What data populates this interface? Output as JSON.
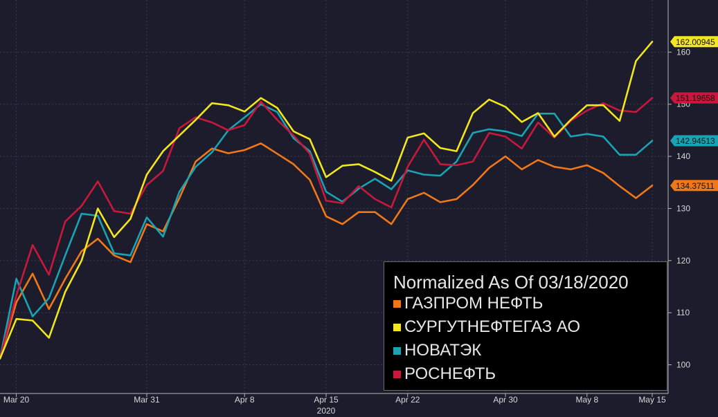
{
  "chart_data": {
    "type": "line",
    "x_labels": [
      "Mar 20",
      "Mar 31",
      "Apr 8",
      "Apr 15",
      "Apr 22",
      "Apr 30",
      "May 8",
      "May 15"
    ],
    "x_label_index": [
      1,
      9,
      15,
      20,
      25,
      31,
      36,
      40
    ],
    "year_label": "2020",
    "y_ticks": [
      100,
      110,
      120,
      130,
      140,
      150,
      160
    ],
    "ylim": [
      94.5,
      170
    ],
    "legend_title": "Normalized As Of 03/18/2020",
    "series": [
      {
        "name": "ГАЗПРОМ НЕФТЬ",
        "color": "#f07818",
        "last_label": "134.37511",
        "values": [
          101.2,
          112.0,
          117.5,
          110.7,
          116.5,
          121.8,
          124.2,
          121.0,
          119.7,
          127.0,
          125.6,
          132.0,
          139.0,
          141.5,
          140.6,
          141.2,
          142.5,
          140.5,
          138.5,
          135.5,
          128.5,
          127.0,
          129.3,
          129.3,
          127.0,
          131.8,
          133.0,
          131.2,
          131.8,
          134.5,
          137.8,
          140.0,
          137.5,
          139.3,
          138.0,
          137.5,
          138.3,
          136.8,
          134.3,
          132.0,
          134.4
        ]
      },
      {
        "name": "СУРГУТНЕФТЕГАЗ АО",
        "color": "#f4e61c",
        "last_label": "162.00945",
        "values": [
          101.2,
          108.8,
          108.5,
          105.2,
          114.0,
          120.0,
          130.0,
          124.5,
          128.0,
          136.5,
          141.0,
          144.0,
          147.0,
          150.2,
          149.8,
          148.6,
          151.2,
          149.3,
          144.8,
          143.3,
          136.0,
          138.2,
          138.5,
          137.0,
          135.3,
          143.6,
          144.4,
          141.6,
          141.0,
          148.3,
          150.9,
          149.5,
          146.6,
          148.3,
          143.8,
          147.0,
          149.8,
          149.8,
          146.8,
          158.3,
          162.0
        ]
      },
      {
        "name": "НОВАТЭК",
        "color": "#18a4b4",
        "last_label": "142.94513",
        "values": [
          101.2,
          116.5,
          109.3,
          112.8,
          121.0,
          129.0,
          128.6,
          121.4,
          121.0,
          128.3,
          124.6,
          133.2,
          138.0,
          140.8,
          145.0,
          147.5,
          150.0,
          148.5,
          143.5,
          141.0,
          133.2,
          131.3,
          133.8,
          135.7,
          133.7,
          137.3,
          136.5,
          136.3,
          139.0,
          144.5,
          145.2,
          144.8,
          143.9,
          148.2,
          148.2,
          143.8,
          144.3,
          143.8,
          140.3,
          140.3,
          143.0
        ]
      },
      {
        "name": "РОСНЕФТЬ",
        "color": "#c8183c",
        "last_label": "151.19658",
        "values": [
          101.2,
          113.3,
          123.0,
          117.3,
          127.5,
          130.5,
          135.2,
          129.5,
          129.0,
          134.5,
          137.2,
          145.4,
          147.5,
          146.5,
          145.0,
          146.0,
          150.5,
          147.0,
          144.0,
          140.5,
          131.5,
          131.0,
          134.3,
          131.8,
          130.2,
          138.0,
          143.2,
          138.5,
          138.3,
          139.0,
          144.5,
          143.8,
          141.5,
          146.5,
          143.6,
          146.8,
          148.8,
          150.2,
          148.8,
          148.5,
          151.2
        ]
      }
    ]
  }
}
